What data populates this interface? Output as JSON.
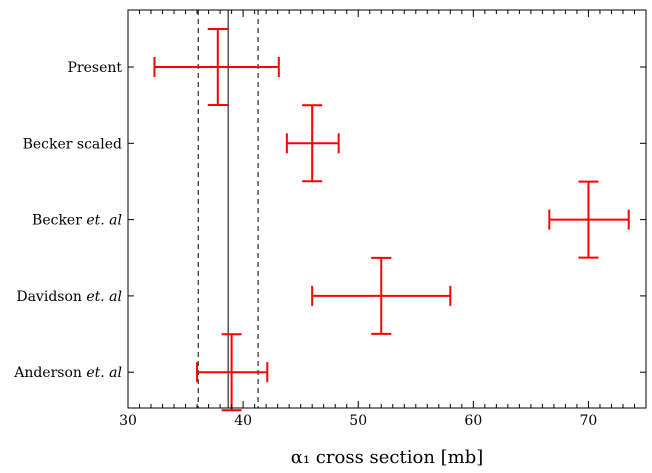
{
  "chart_data": {
    "type": "scatter",
    "title": "",
    "xlabel": "α₁ cross section [mb]",
    "ylabel": "",
    "xlim": [
      30,
      75
    ],
    "x_ticks": [
      30,
      40,
      50,
      60,
      70
    ],
    "grid": false,
    "legend": "none",
    "marker_color": "#ff0000",
    "points": [
      {
        "label": "Present",
        "label_main": "Present",
        "label_italic": "",
        "x": 37.8,
        "xerr_low": 32.3,
        "xerr_high": 43.1
      },
      {
        "label": "Becker scaled",
        "label_main": "Becker scaled",
        "label_italic": "",
        "x": 46.0,
        "xerr_low": 43.8,
        "xerr_high": 48.3
      },
      {
        "label": "Becker et. al",
        "label_main": "Becker ",
        "label_italic": "et. al",
        "x": 70.0,
        "xerr_low": 66.6,
        "xerr_high": 73.5
      },
      {
        "label": "Davidson et. al",
        "label_main": "Davidson ",
        "label_italic": "et. al",
        "x": 52.0,
        "xerr_low": 46.0,
        "xerr_high": 58.0
      },
      {
        "label": "Anderson et. al",
        "label_main": "Anderson ",
        "label_italic": "et. al",
        "x": 39.0,
        "xerr_low": 36.0,
        "xerr_high": 42.1
      }
    ],
    "reference_lines": [
      {
        "x": 38.7,
        "style": "solid"
      },
      {
        "x": 36.1,
        "style": "dashed"
      },
      {
        "x": 41.3,
        "style": "dashed"
      }
    ]
  }
}
